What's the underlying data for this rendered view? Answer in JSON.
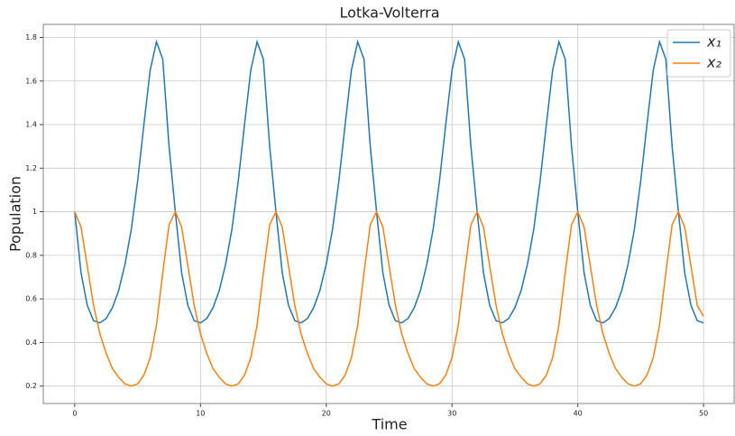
{
  "chart_data": {
    "type": "line",
    "title": "Lotka-Volterra",
    "xlabel": "Time",
    "ylabel": "Population",
    "x": [
      0,
      0.5,
      1,
      1.5,
      2,
      2.5,
      3,
      3.5,
      4,
      4.5,
      5,
      5.5,
      6,
      6.5,
      7,
      7.5,
      8,
      8.5,
      9,
      9.5,
      10,
      10.5,
      11,
      11.5,
      12,
      12.5,
      13,
      13.5,
      14,
      14.5,
      15,
      15.5,
      16,
      16.5,
      17,
      17.5,
      18,
      18.5,
      19,
      19.5,
      20,
      20.5,
      21,
      21.5,
      22,
      22.5,
      23,
      23.5,
      24,
      24.5,
      25,
      25.5,
      26,
      26.5,
      27,
      27.5,
      28,
      28.5,
      29,
      29.5,
      30,
      30.5,
      31,
      31.5,
      32,
      32.5,
      33,
      33.5,
      34,
      34.5,
      35,
      35.5,
      36,
      36.5,
      37,
      37.5,
      38,
      38.5,
      39,
      39.5,
      40,
      40.5,
      41,
      41.5,
      42,
      42.5,
      43,
      43.5,
      44,
      44.5,
      45,
      45.5,
      46,
      46.5,
      47,
      47.5,
      48,
      48.5,
      49,
      49.5,
      50
    ],
    "series": [
      {
        "name": "x₁",
        "color": "#1f77b4",
        "values": [
          1.0,
          0.72,
          0.57,
          0.5,
          0.49,
          0.51,
          0.56,
          0.64,
          0.76,
          0.92,
          1.14,
          1.4,
          1.65,
          1.78,
          1.7,
          1.3,
          1.0,
          0.72,
          0.57,
          0.5,
          0.49,
          0.51,
          0.56,
          0.64,
          0.76,
          0.92,
          1.14,
          1.4,
          1.65,
          1.78,
          1.7,
          1.3,
          1.0,
          0.72,
          0.57,
          0.5,
          0.49,
          0.51,
          0.56,
          0.64,
          0.76,
          0.92,
          1.14,
          1.4,
          1.65,
          1.78,
          1.7,
          1.3,
          1.0,
          0.72,
          0.57,
          0.5,
          0.49,
          0.51,
          0.56,
          0.64,
          0.76,
          0.92,
          1.14,
          1.4,
          1.65,
          1.78,
          1.7,
          1.3,
          1.0,
          0.72,
          0.57,
          0.5,
          0.49,
          0.51,
          0.56,
          0.64,
          0.76,
          0.92,
          1.14,
          1.4,
          1.65,
          1.78,
          1.7,
          1.3,
          1.0,
          0.72,
          0.57,
          0.5,
          0.49,
          0.51,
          0.56,
          0.64,
          0.76,
          0.92,
          1.14,
          1.4,
          1.65,
          1.78,
          1.7,
          1.3,
          1.0,
          0.72,
          0.57,
          0.5,
          0.49
        ]
      },
      {
        "name": "x₂",
        "color": "#ff7f0e",
        "values": [
          1.0,
          0.93,
          0.75,
          0.57,
          0.44,
          0.35,
          0.28,
          0.24,
          0.21,
          0.2,
          0.21,
          0.25,
          0.33,
          0.48,
          0.72,
          0.94,
          1.0,
          0.93,
          0.75,
          0.57,
          0.44,
          0.35,
          0.28,
          0.24,
          0.21,
          0.2,
          0.21,
          0.25,
          0.33,
          0.48,
          0.72,
          0.94,
          1.0,
          0.93,
          0.75,
          0.57,
          0.44,
          0.35,
          0.28,
          0.24,
          0.21,
          0.2,
          0.21,
          0.25,
          0.33,
          0.48,
          0.72,
          0.94,
          1.0,
          0.93,
          0.75,
          0.57,
          0.44,
          0.35,
          0.28,
          0.24,
          0.21,
          0.2,
          0.21,
          0.25,
          0.33,
          0.48,
          0.72,
          0.94,
          1.0,
          0.93,
          0.75,
          0.57,
          0.44,
          0.35,
          0.28,
          0.24,
          0.21,
          0.2,
          0.21,
          0.25,
          0.33,
          0.48,
          0.72,
          0.94,
          1.0,
          0.93,
          0.75,
          0.57,
          0.44,
          0.35,
          0.28,
          0.24,
          0.21,
          0.2,
          0.21,
          0.25,
          0.33,
          0.48,
          0.72,
          0.94,
          1.0,
          0.93,
          0.75,
          0.57,
          0.52
        ]
      }
    ],
    "xlim": [
      -2.5,
      52.5
    ],
    "xticks": [
      0,
      10,
      20,
      30,
      40,
      50
    ],
    "ylim": [
      0.12,
      1.86
    ],
    "yticks": [
      0.2,
      0.4,
      0.6,
      0.8,
      1.0,
      1.2,
      1.4,
      1.6,
      1.8
    ],
    "grid": true,
    "legend": "upper right"
  }
}
